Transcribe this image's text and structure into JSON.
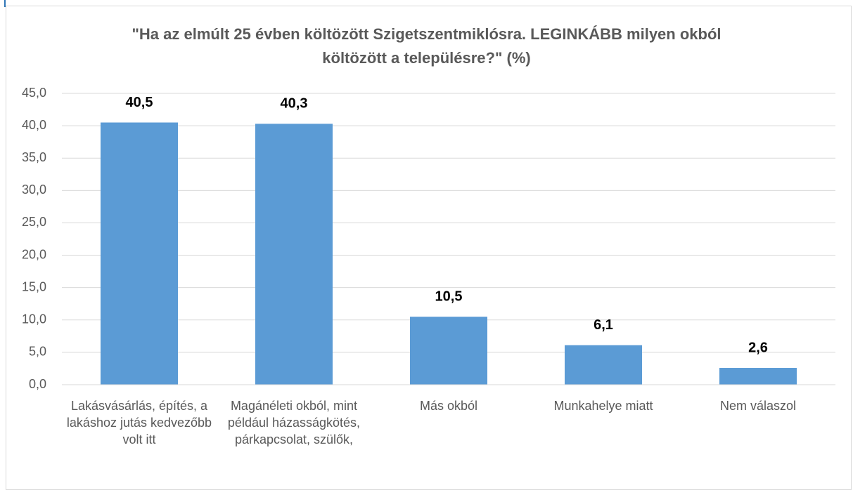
{
  "chart_data": {
    "type": "bar",
    "title": "\"Ha az elmúlt 25 évben költözött Szigetszentmiklósra. LEGINKÁBB milyen okból költözött a településre?\" (%)",
    "categories": [
      "Lakásvásárlás, építés, a lakáshoz jutás kedvezőbb volt itt",
      "Magánéleti okból, mint például házasságkötés, párkapcsolat, szülők,",
      "Más okból",
      "Munkahelye miatt",
      "Nem válaszol"
    ],
    "values": [
      40.5,
      40.3,
      10.5,
      6.1,
      2.6
    ],
    "value_labels": [
      "40,5",
      "40,3",
      "10,5",
      "6,1",
      "2,6"
    ],
    "color": "#5b9bd5",
    "ylim": [
      0,
      45
    ],
    "yticks": [
      {
        "value": 0,
        "label": "0,0"
      },
      {
        "value": 5,
        "label": "5,0"
      },
      {
        "value": 10,
        "label": "10,0"
      },
      {
        "value": 15,
        "label": "15,0"
      },
      {
        "value": 20,
        "label": "20,0"
      },
      {
        "value": 25,
        "label": "25,0"
      },
      {
        "value": 30,
        "label": "30,0"
      },
      {
        "value": 35,
        "label": "35,0"
      },
      {
        "value": 40,
        "label": "40,0"
      },
      {
        "value": 45,
        "label": "45,0"
      }
    ],
    "grid": true
  }
}
